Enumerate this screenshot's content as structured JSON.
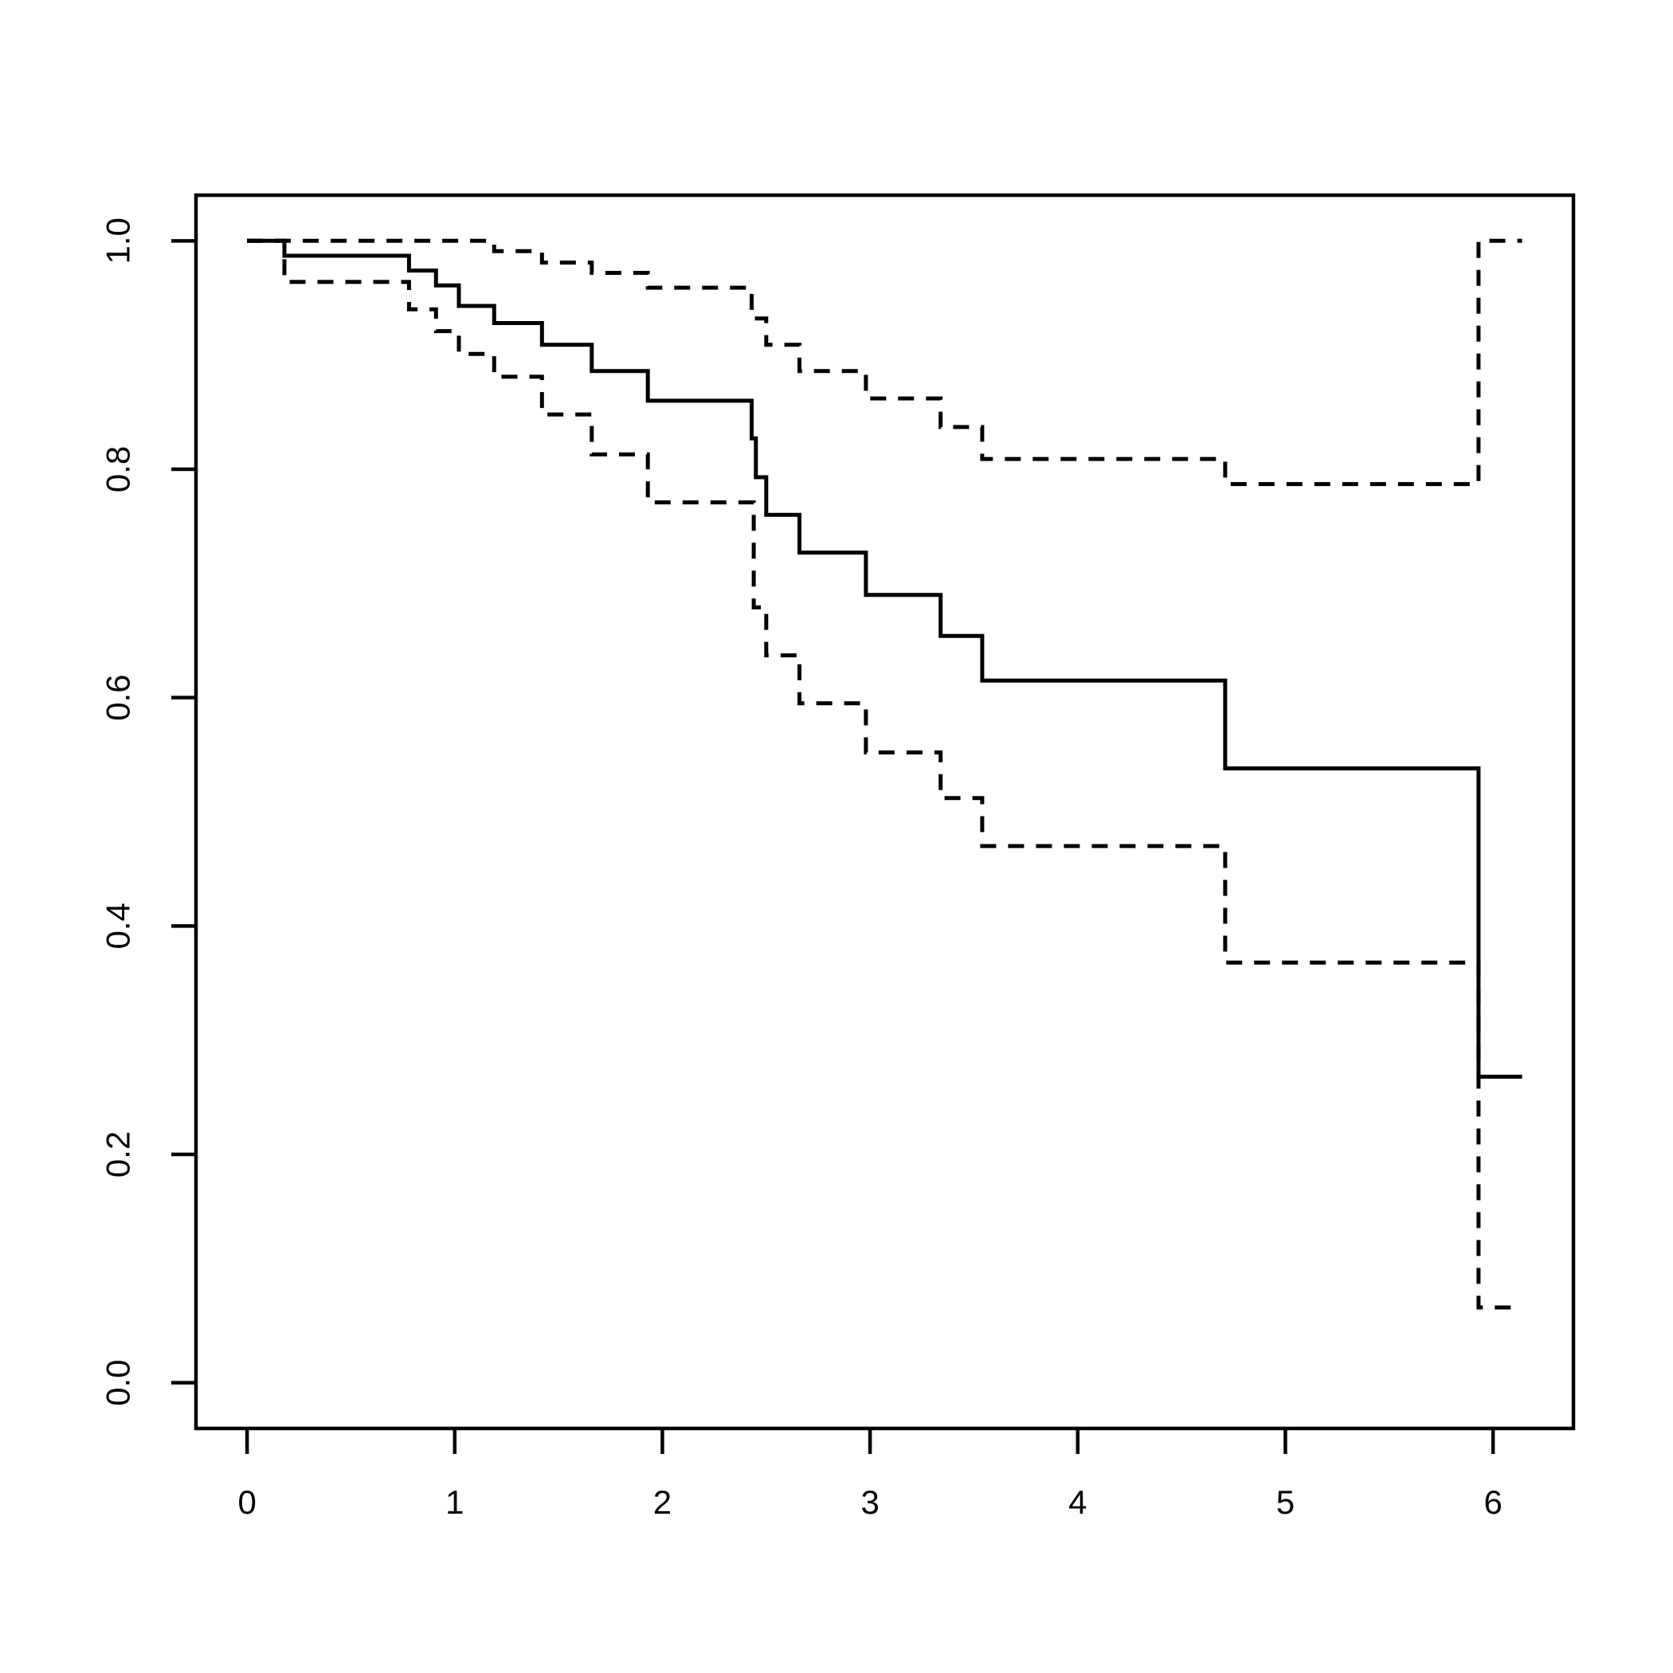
{
  "figure": {
    "background_color": "#ffffff",
    "line_color": "#000000",
    "title": ""
  },
  "chart_data": {
    "type": "line",
    "subtype": "kaplan-meier-step",
    "title": "",
    "xlabel": "",
    "ylabel": "",
    "grid": false,
    "legend": "none",
    "x_ticks": [
      {
        "v": 0,
        "label": "0"
      },
      {
        "v": 1,
        "label": "1"
      },
      {
        "v": 2,
        "label": "2"
      },
      {
        "v": 3,
        "label": "3"
      },
      {
        "v": 4,
        "label": "4"
      },
      {
        "v": 5,
        "label": "5"
      },
      {
        "v": 6,
        "label": "6"
      }
    ],
    "y_ticks": [
      {
        "v": 0.0,
        "label": "0.0"
      },
      {
        "v": 0.2,
        "label": "0.2"
      },
      {
        "v": 0.4,
        "label": "0.4"
      },
      {
        "v": 0.6,
        "label": "0.6"
      },
      {
        "v": 0.8,
        "label": "0.8"
      },
      {
        "v": 1.0,
        "label": "1.0"
      }
    ],
    "x_range_usr": [
      -0.246,
      6.387
    ],
    "y_range_usr": [
      -0.04,
      1.04
    ],
    "end_time": 6.14,
    "series": [
      {
        "name": "survival-estimate",
        "style": "solid",
        "points": [
          [
            0,
            1.0
          ],
          [
            0.18,
            0.987
          ],
          [
            0.78,
            0.974
          ],
          [
            0.91,
            0.961
          ],
          [
            1.02,
            0.943
          ],
          [
            1.19,
            0.928
          ],
          [
            1.42,
            0.909
          ],
          [
            1.66,
            0.886
          ],
          [
            1.93,
            0.86
          ],
          [
            2.43,
            0.827
          ],
          [
            2.45,
            0.793
          ],
          [
            2.5,
            0.76
          ],
          [
            2.66,
            0.727
          ],
          [
            2.98,
            0.69
          ],
          [
            3.34,
            0.654
          ],
          [
            3.54,
            0.615
          ],
          [
            4.71,
            0.538
          ],
          [
            5.93,
            0.268
          ]
        ]
      },
      {
        "name": "upper-95-ci",
        "style": "dashed",
        "points": [
          [
            0,
            1.0
          ],
          [
            1.19,
            0.991
          ],
          [
            1.42,
            0.981
          ],
          [
            1.66,
            0.972
          ],
          [
            1.93,
            0.959
          ],
          [
            2.43,
            0.932
          ],
          [
            2.5,
            0.909
          ],
          [
            2.66,
            0.886
          ],
          [
            2.98,
            0.862
          ],
          [
            3.34,
            0.837
          ],
          [
            3.54,
            0.809
          ],
          [
            4.71,
            0.787
          ],
          [
            5.93,
            1.0
          ]
        ]
      },
      {
        "name": "lower-95-ci",
        "style": "dashed",
        "points": [
          [
            0,
            1.0
          ],
          [
            0.18,
            0.964
          ],
          [
            0.78,
            0.94
          ],
          [
            0.91,
            0.921
          ],
          [
            1.02,
            0.901
          ],
          [
            1.19,
            0.881
          ],
          [
            1.42,
            0.848
          ],
          [
            1.66,
            0.813
          ],
          [
            1.93,
            0.771
          ],
          [
            2.44,
            0.679
          ],
          [
            2.5,
            0.637
          ],
          [
            2.66,
            0.595
          ],
          [
            2.98,
            0.552
          ],
          [
            3.34,
            0.512
          ],
          [
            3.54,
            0.47
          ],
          [
            4.71,
            0.368
          ],
          [
            5.93,
            0.066
          ]
        ]
      }
    ]
  }
}
